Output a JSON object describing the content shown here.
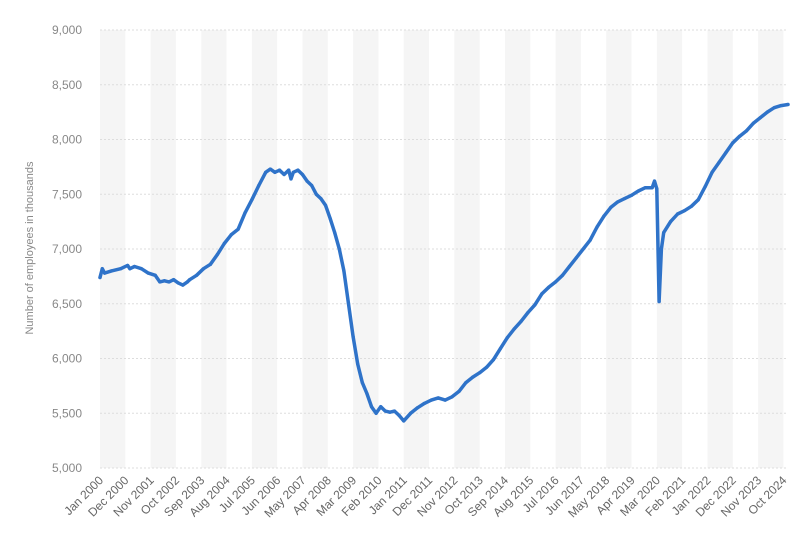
{
  "chart_data": {
    "type": "line",
    "title": "",
    "xlabel": "",
    "ylabel": "Number of employees in thousands",
    "ylim": [
      5000,
      9000
    ],
    "yticks": [
      5000,
      5500,
      6000,
      6500,
      7000,
      7500,
      8000,
      8500,
      9000
    ],
    "ytick_labels": [
      "5,000",
      "5,500",
      "6,000",
      "6,500",
      "7,000",
      "7,500",
      "8,000",
      "8,500",
      "9,000"
    ],
    "xlim": [
      "2000-01",
      "2024-12"
    ],
    "xticks": [
      "2000-01",
      "2000-12",
      "2001-11",
      "2002-10",
      "2003-09",
      "2004-08",
      "2005-07",
      "2006-06",
      "2007-05",
      "2008-04",
      "2009-03",
      "2010-02",
      "2011-01",
      "2011-12",
      "2012-11",
      "2013-10",
      "2014-09",
      "2015-08",
      "2016-07",
      "2017-06",
      "2018-05",
      "2019-04",
      "2020-03",
      "2021-02",
      "2022-01",
      "2022-12",
      "2023-11",
      "2024-10"
    ],
    "xtick_labels": [
      "Jan 2000",
      "Dec 2000",
      "Nov 2001",
      "Oct 2002",
      "Sep 2003",
      "Aug 2004",
      "Jul 2005",
      "Jun 2006",
      "May 2007",
      "Apr 2008",
      "Mar 2009",
      "Feb 2010",
      "Jan 2011",
      "Dec 2011",
      "Nov 2012",
      "Oct 2013",
      "Sep 2014",
      "Aug 2015",
      "Jul 2016",
      "Jun 2017",
      "May 2018",
      "Apr 2019",
      "Mar 2020",
      "Feb 2021",
      "Jan 2022",
      "Dec 2022",
      "Nov 2023",
      "Oct 2024"
    ],
    "grid": true,
    "line_color": "#2f73c9",
    "band_color": "#f5f5f5",
    "grid_color": "#dddddd",
    "series": [
      {
        "name": "",
        "x": [
          "2000-01",
          "2000-02",
          "2000-03",
          "2000-06",
          "2000-10",
          "2001-01",
          "2001-02",
          "2001-04",
          "2001-07",
          "2001-10",
          "2002-01",
          "2002-03",
          "2002-05",
          "2002-07",
          "2002-09",
          "2002-11",
          "2003-01",
          "2003-03",
          "2003-04",
          "2003-07",
          "2003-10",
          "2004-01",
          "2004-04",
          "2004-07",
          "2004-10",
          "2005-01",
          "2005-04",
          "2005-07",
          "2005-10",
          "2006-01",
          "2006-03",
          "2006-05",
          "2006-07",
          "2006-09",
          "2006-11",
          "2006-12",
          "2007-01",
          "2007-03",
          "2007-05",
          "2007-07",
          "2007-09",
          "2007-11",
          "2008-01",
          "2008-03",
          "2008-05",
          "2008-07",
          "2008-09",
          "2008-11",
          "2009-01",
          "2009-03",
          "2009-05",
          "2009-07",
          "2009-09",
          "2009-11",
          "2010-01",
          "2010-03",
          "2010-05",
          "2010-07",
          "2010-09",
          "2010-11",
          "2011-01",
          "2011-04",
          "2011-07",
          "2011-10",
          "2012-01",
          "2012-04",
          "2012-07",
          "2012-10",
          "2013-01",
          "2013-04",
          "2013-07",
          "2013-10",
          "2014-01",
          "2014-04",
          "2014-07",
          "2014-10",
          "2015-01",
          "2015-04",
          "2015-07",
          "2015-10",
          "2016-01",
          "2016-04",
          "2016-07",
          "2016-10",
          "2017-01",
          "2017-04",
          "2017-07",
          "2017-10",
          "2018-01",
          "2018-04",
          "2018-07",
          "2018-10",
          "2019-01",
          "2019-04",
          "2019-07",
          "2019-10",
          "2020-01",
          "2020-02",
          "2020-03",
          "2020-04",
          "2020-05",
          "2020-06",
          "2020-09",
          "2020-12",
          "2021-03",
          "2021-06",
          "2021-09",
          "2021-12",
          "2022-03",
          "2022-06",
          "2022-09",
          "2022-12",
          "2023-03",
          "2023-06",
          "2023-09",
          "2023-12",
          "2024-03",
          "2024-06",
          "2024-09",
          "2024-12"
        ],
        "y": [
          6740,
          6820,
          6780,
          6800,
          6820,
          6850,
          6820,
          6840,
          6820,
          6780,
          6760,
          6700,
          6710,
          6700,
          6720,
          6690,
          6670,
          6700,
          6720,
          6760,
          6820,
          6860,
          6950,
          7050,
          7130,
          7180,
          7330,
          7450,
          7580,
          7700,
          7730,
          7700,
          7720,
          7680,
          7720,
          7640,
          7700,
          7720,
          7680,
          7620,
          7580,
          7500,
          7460,
          7400,
          7280,
          7150,
          7000,
          6800,
          6500,
          6200,
          5950,
          5780,
          5680,
          5560,
          5500,
          5560,
          5520,
          5510,
          5520,
          5480,
          5430,
          5500,
          5550,
          5590,
          5620,
          5640,
          5620,
          5650,
          5700,
          5780,
          5830,
          5870,
          5920,
          5990,
          6090,
          6190,
          6270,
          6340,
          6420,
          6490,
          6590,
          6650,
          6700,
          6760,
          6840,
          6920,
          7000,
          7080,
          7200,
          7300,
          7380,
          7430,
          7460,
          7490,
          7530,
          7560,
          7560,
          7620,
          7550,
          6520,
          7000,
          7150,
          7250,
          7320,
          7350,
          7390,
          7450,
          7570,
          7700,
          7790,
          7880,
          7970,
          8030,
          8080,
          8150,
          8200,
          8250,
          8290,
          8310,
          8320
        ]
      }
    ]
  }
}
